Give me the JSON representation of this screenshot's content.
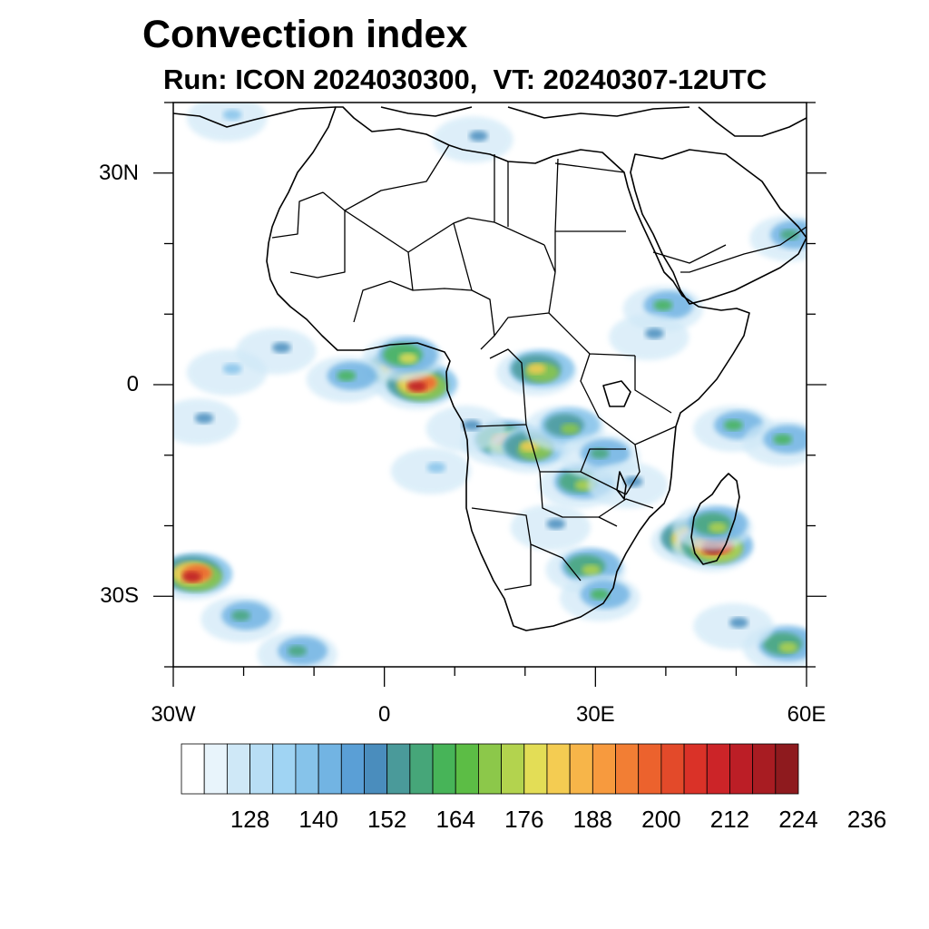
{
  "title": "Convection index",
  "subtitle": "Run: ICON 2024030300,  VT: 20240307-12UTC",
  "map": {
    "lon_range": [
      -30,
      60
    ],
    "lat_range": [
      -40,
      40
    ],
    "lon_ticks": [
      {
        "value": -30,
        "label": "30W"
      },
      {
        "value": 0,
        "label": "0"
      },
      {
        "value": 30,
        "label": "30E"
      },
      {
        "value": 60,
        "label": "60E"
      }
    ],
    "lat_ticks": [
      {
        "value": 30,
        "label": "30N"
      },
      {
        "value": 0,
        "label": "0"
      },
      {
        "value": -30,
        "label": "30S"
      }
    ]
  },
  "colorbar": {
    "levels_shown": [
      "128",
      "140",
      "152",
      "164",
      "176",
      "188",
      "200",
      "212",
      "224",
      "236"
    ],
    "colors": [
      "#ffffff",
      "#e8f4fb",
      "#cfe8f7",
      "#b8def5",
      "#a0d4f3",
      "#86c3ea",
      "#72b4e3",
      "#5a9fd6",
      "#4a8dbd",
      "#4a9a9a",
      "#46a679",
      "#47b458",
      "#5cbd45",
      "#8cc84a",
      "#b3d34e",
      "#e3dd56",
      "#f4cc52",
      "#f7b549",
      "#f79a3e",
      "#f27e34",
      "#ec622d",
      "#e34a2a",
      "#da3228",
      "#cc2428",
      "#bc1e26",
      "#a81c22",
      "#8e1a1e"
    ]
  },
  "convection_cells": [
    {
      "lon": -15,
      "lat": 5,
      "value": 150
    },
    {
      "lon": -22,
      "lat": 2,
      "value": 140
    },
    {
      "lon": -26,
      "lat": -5,
      "value": 150
    },
    {
      "lon": 2,
      "lat": 2,
      "value": 200
    },
    {
      "lon": 5,
      "lat": 0,
      "value": 215
    },
    {
      "lon": 3,
      "lat": 4,
      "value": 180
    },
    {
      "lon": -5,
      "lat": 1,
      "value": 165
    },
    {
      "lon": 22,
      "lat": 2,
      "value": 185
    },
    {
      "lon": 17,
      "lat": -8,
      "value": 195
    },
    {
      "lon": 21,
      "lat": -9,
      "value": 185
    },
    {
      "lon": 26,
      "lat": -6,
      "value": 170
    },
    {
      "lon": 28,
      "lat": -14,
      "value": 175
    },
    {
      "lon": 31,
      "lat": -10,
      "value": 160
    },
    {
      "lon": 24,
      "lat": -20,
      "value": 150
    },
    {
      "lon": 29,
      "lat": -26,
      "value": 175
    },
    {
      "lon": 31,
      "lat": -30,
      "value": 165
    },
    {
      "lon": 35,
      "lat": -14,
      "value": 150
    },
    {
      "lon": 40,
      "lat": 11,
      "value": 165
    },
    {
      "lon": 38,
      "lat": 7,
      "value": 150
    },
    {
      "lon": 44,
      "lat": -22,
      "value": 215
    },
    {
      "lon": 47,
      "lat": -23,
      "value": 225
    },
    {
      "lon": 47,
      "lat": -20,
      "value": 175
    },
    {
      "lon": 50,
      "lat": -6,
      "value": 165
    },
    {
      "lon": 57,
      "lat": -8,
      "value": 165
    },
    {
      "lon": 58,
      "lat": 21,
      "value": 160
    },
    {
      "lon": -27,
      "lat": -27,
      "value": 215
    },
    {
      "lon": -20,
      "lat": -33,
      "value": 160
    },
    {
      "lon": -12,
      "lat": -38,
      "value": 160
    },
    {
      "lon": 57,
      "lat": -37,
      "value": 175
    },
    {
      "lon": 50,
      "lat": -34,
      "value": 150
    },
    {
      "lon": 13,
      "lat": 35,
      "value": 150
    },
    {
      "lon": -22,
      "lat": 38,
      "value": 140
    },
    {
      "lon": 12,
      "lat": -6,
      "value": 150
    },
    {
      "lon": 7,
      "lat": -12,
      "value": 140
    }
  ]
}
